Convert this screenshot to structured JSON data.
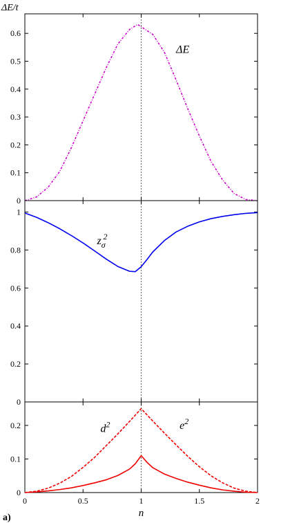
{
  "figure_label": "a)",
  "chart_data": [
    {
      "type": "line",
      "panel": "top",
      "ylabel": "ΔE/t",
      "ylim": [
        0,
        0.67
      ],
      "yticks": [
        0,
        0.1,
        0.2,
        0.3,
        0.4,
        0.5,
        0.6
      ],
      "ytick_labels": [
        "0",
        "0.1",
        "0.2",
        "0.3",
        "0.4",
        "0.5",
        "0.6"
      ],
      "xlim": [
        0,
        2
      ],
      "vline_x": 1.0,
      "series": [
        {
          "name": "ΔE",
          "color": "#cc00cc",
          "dash": "dotdash",
          "x": [
            0.0,
            0.1,
            0.2,
            0.3,
            0.4,
            0.5,
            0.6,
            0.7,
            0.8,
            0.9,
            0.97,
            1.1,
            1.2,
            1.3,
            1.4,
            1.5,
            1.6,
            1.7,
            1.8,
            1.9,
            2.0
          ],
          "y": [
            0.0,
            0.013,
            0.048,
            0.105,
            0.19,
            0.286,
            0.382,
            0.477,
            0.562,
            0.614,
            0.632,
            0.596,
            0.532,
            0.433,
            0.33,
            0.232,
            0.141,
            0.074,
            0.025,
            0.004,
            0.0
          ]
        }
      ],
      "annotations": [
        {
          "text": "ΔE",
          "x": 1.3,
          "y": 0.53
        }
      ]
    },
    {
      "type": "line",
      "panel": "middle",
      "ylim": [
        0,
        1.06
      ],
      "yticks": [
        0,
        0.2,
        0.4,
        0.6,
        0.8,
        1
      ],
      "ytick_labels": [
        "0",
        "0.2",
        "0.4",
        "0.6",
        "0.8",
        "1"
      ],
      "xlim": [
        0,
        2
      ],
      "vline_x": 1.0,
      "series": [
        {
          "name": "z_σ^2",
          "color": "#0000ee",
          "dash": "solid",
          "x": [
            0.0,
            0.1,
            0.2,
            0.3,
            0.4,
            0.5,
            0.6,
            0.7,
            0.8,
            0.9,
            0.95,
            1.0,
            1.05,
            1.1,
            1.2,
            1.3,
            1.4,
            1.5,
            1.6,
            1.7,
            1.8,
            1.9,
            2.0
          ],
          "y": [
            0.995,
            0.972,
            0.944,
            0.912,
            0.876,
            0.837,
            0.795,
            0.752,
            0.713,
            0.688,
            0.686,
            0.712,
            0.75,
            0.79,
            0.85,
            0.895,
            0.925,
            0.948,
            0.965,
            0.977,
            0.986,
            0.993,
            0.997
          ]
        }
      ],
      "annotations": [
        {
          "text_main": "z",
          "text_sub": "σ",
          "text_sup": "2",
          "x": 0.62,
          "y": 0.83
        }
      ]
    },
    {
      "type": "line",
      "panel": "bottom",
      "xlabel": "n",
      "ylim": [
        0,
        0.27
      ],
      "yticks": [
        0,
        0.1,
        0.2
      ],
      "ytick_labels": [
        "0",
        "0.1",
        "0.2"
      ],
      "xlim": [
        0,
        2
      ],
      "xticks": [
        0,
        0.5,
        1,
        1.5,
        2
      ],
      "xtick_labels": [
        "0",
        "0.5",
        "1",
        "1.5",
        "2"
      ],
      "vline_x": 1.0,
      "series": [
        {
          "name": "d^2",
          "color": "#ee0000",
          "dash": "dashed",
          "x": [
            0.0,
            0.1,
            0.2,
            0.3,
            0.4,
            0.5,
            0.6,
            0.7,
            0.8,
            0.9,
            1.0,
            1.1,
            1.2,
            1.3,
            1.4,
            1.5,
            1.6,
            1.7,
            1.8,
            1.9,
            2.0
          ],
          "y": [
            0.0,
            0.004,
            0.013,
            0.028,
            0.048,
            0.075,
            0.105,
            0.14,
            0.175,
            0.212,
            0.25,
            0.213,
            0.177,
            0.142,
            0.108,
            0.077,
            0.05,
            0.029,
            0.013,
            0.004,
            0.0
          ]
        },
        {
          "name": "e^2",
          "color": "#ee0000",
          "dash": "solid",
          "x": [
            0.0,
            0.1,
            0.2,
            0.3,
            0.4,
            0.5,
            0.6,
            0.7,
            0.8,
            0.9,
            0.95,
            1.0,
            1.05,
            1.1,
            1.2,
            1.3,
            1.4,
            1.5,
            1.6,
            1.7,
            1.8,
            1.9,
            2.0
          ],
          "y": [
            0.0,
            0.002,
            0.005,
            0.009,
            0.014,
            0.021,
            0.029,
            0.038,
            0.051,
            0.07,
            0.086,
            0.11,
            0.09,
            0.074,
            0.055,
            0.042,
            0.031,
            0.022,
            0.014,
            0.008,
            0.004,
            0.001,
            0.0
          ]
        }
      ],
      "annotations": [
        {
          "text_main": "d",
          "text_sup": "2",
          "x": 0.65,
          "y": 0.18
        },
        {
          "text_main": "e",
          "text_sup": "2",
          "x": 1.33,
          "y": 0.19
        }
      ]
    }
  ]
}
